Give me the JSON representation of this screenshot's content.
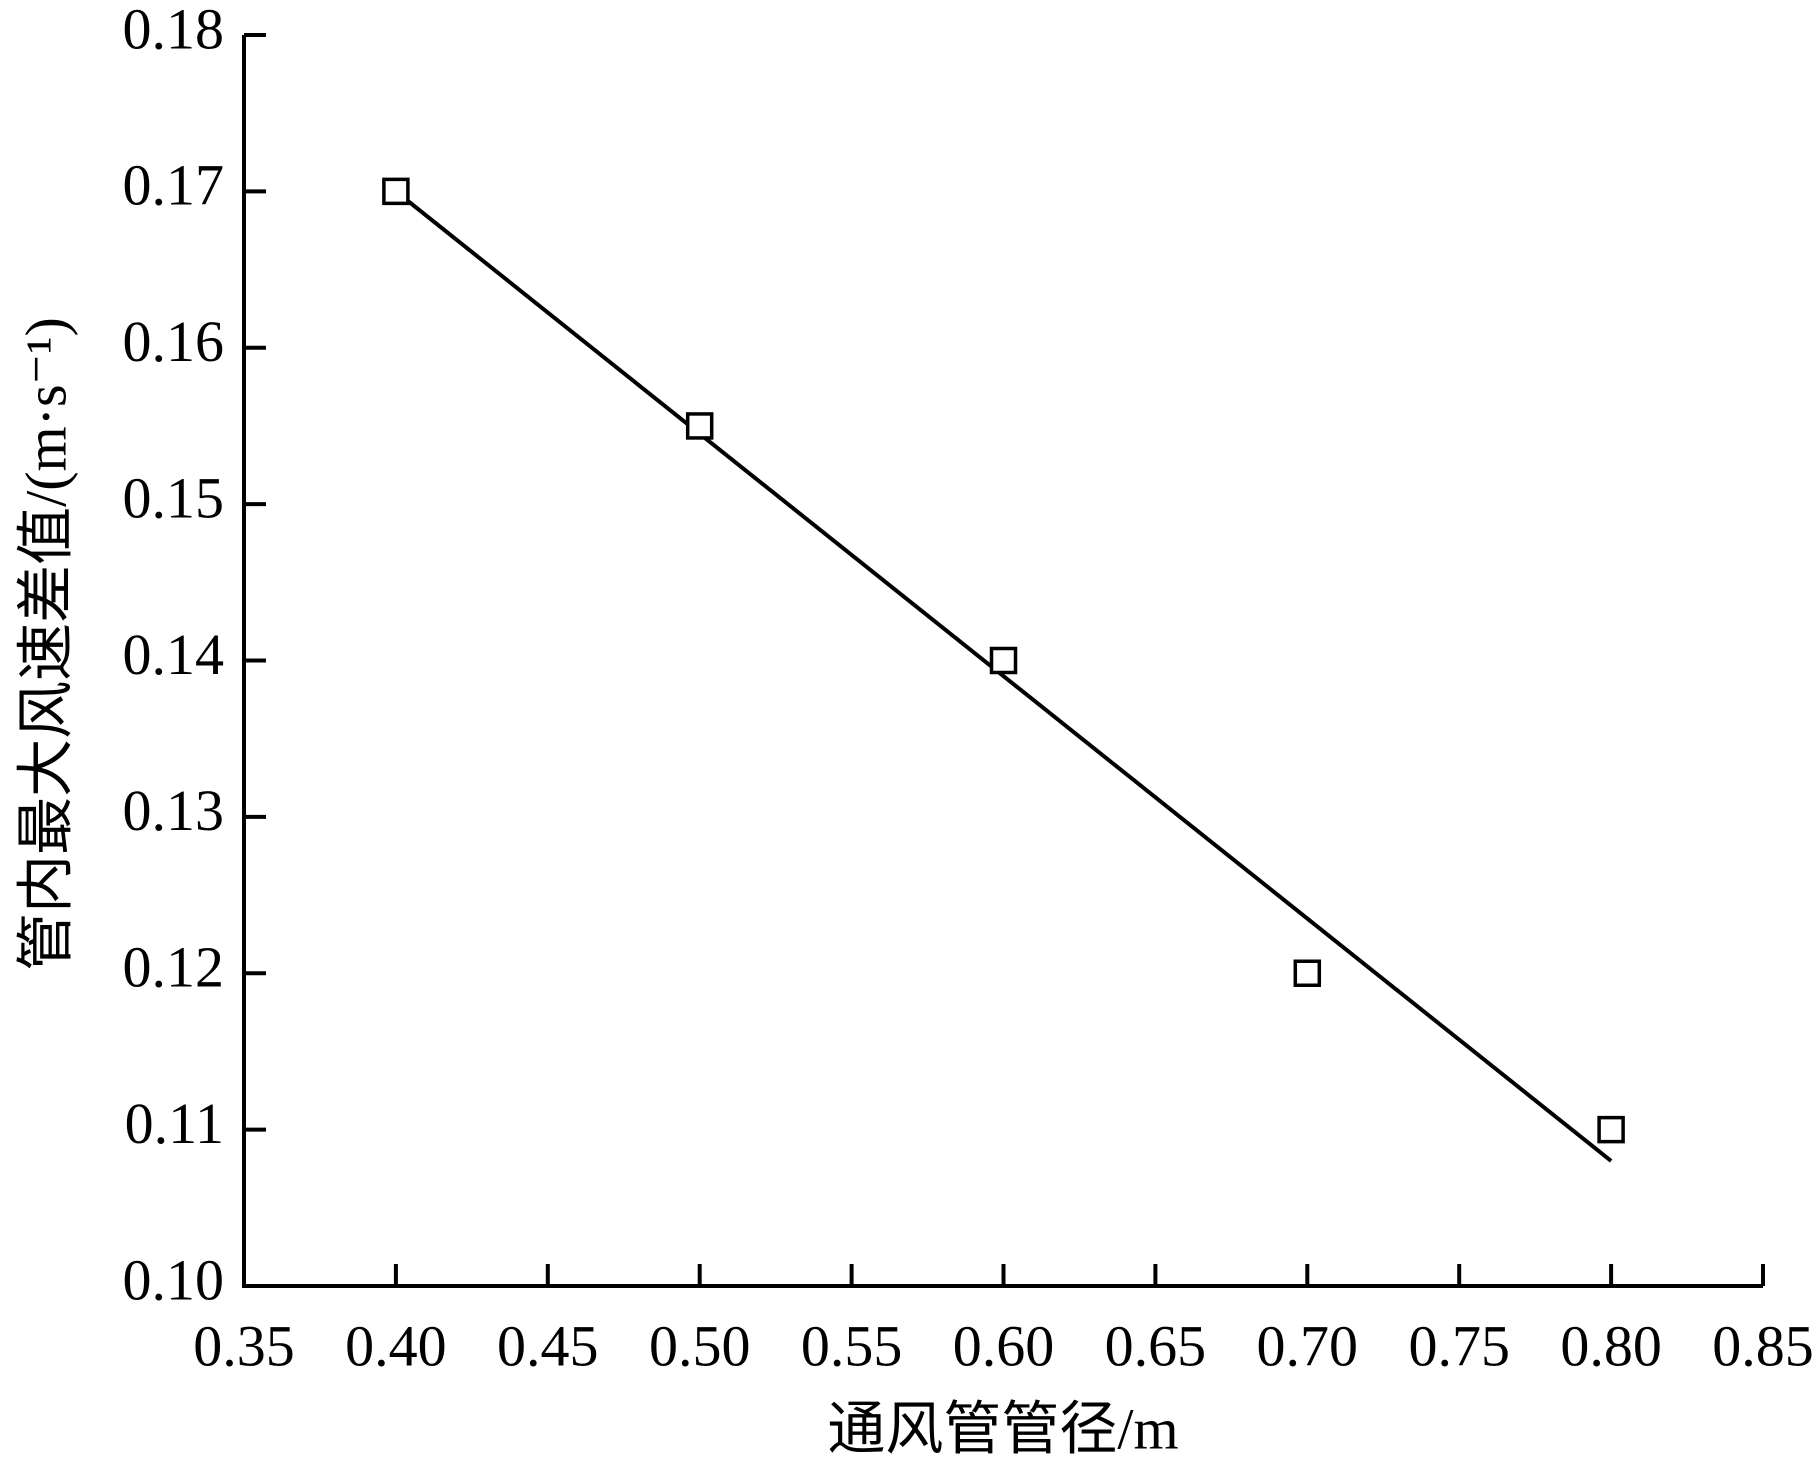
{
  "chart_data": {
    "type": "scatter",
    "x_label": "通风管管径/m",
    "y_label": "管内最大风速差值/(m·s⁻¹)",
    "xlim": [
      0.35,
      0.85
    ],
    "ylim": [
      0.1,
      0.18
    ],
    "xticks": [
      0.35,
      {
        "value": 0.4,
        "label": "0.40"
      },
      0.45,
      {
        "value": 0.5,
        "label": "0.50"
      },
      0.55,
      {
        "value": 0.6,
        "label": "0.60"
      },
      0.65,
      {
        "value": 0.7,
        "label": "0.70"
      },
      0.75,
      {
        "value": 0.8,
        "label": "0.80"
      },
      0.85
    ],
    "yticks": [
      {
        "value": 0.1,
        "label": "0.10"
      },
      0.11,
      0.12,
      0.13,
      0.14,
      0.15,
      0.16,
      0.17,
      0.18
    ],
    "series": [
      {
        "mode": "markers",
        "marker": "open-square",
        "color": "#000000",
        "x": [
          0.4,
          0.5,
          0.6,
          0.7,
          0.8
        ],
        "values": [
          0.17,
          0.155,
          0.14,
          0.12,
          0.11
        ]
      },
      {
        "mode": "line",
        "color": "#000000",
        "x": [
          0.4,
          0.8
        ],
        "values": [
          0.17,
          0.108
        ]
      }
    ]
  }
}
